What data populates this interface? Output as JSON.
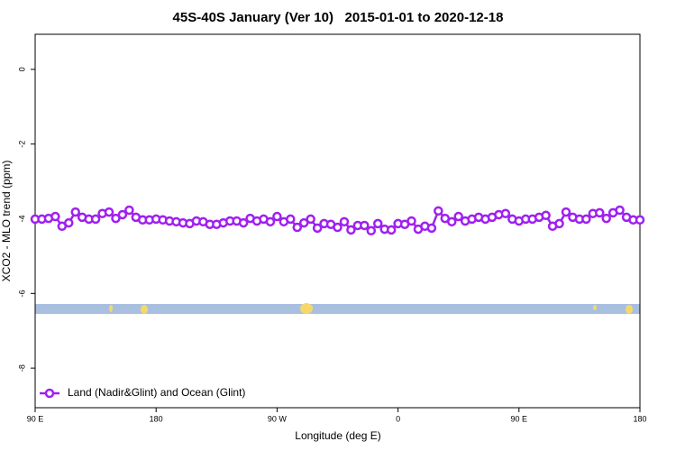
{
  "chart_data": {
    "type": "line",
    "title": "45S-40S January (Ver 10)   2015-01-01 to 2020-12-18",
    "x_label": "Longitude (deg E)",
    "y_label": "XCO2 - MLO trend (ppm)",
    "xlim": [
      90,
      540
    ],
    "xticks": [
      {
        "value": 90,
        "label": "90 E"
      },
      {
        "value": 180,
        "label": "180"
      },
      {
        "value": 270,
        "label": "90 W"
      },
      {
        "value": 360,
        "label": "0"
      },
      {
        "value": 450,
        "label": "90 E"
      },
      {
        "value": 540,
        "label": "180"
      }
    ],
    "ylim": [
      -9.06,
      0.94
    ],
    "yticks": [
      0,
      -2,
      -4,
      -6,
      -8
    ],
    "legend": "bottom-left",
    "x": [
      90,
      95,
      100,
      105,
      110,
      115,
      120,
      125,
      130,
      135,
      140,
      145,
      150,
      155,
      160,
      165,
      170,
      175,
      180,
      185,
      190,
      195,
      200,
      205,
      210,
      215,
      220,
      225,
      230,
      235,
      240,
      245,
      250,
      255,
      260,
      265,
      270,
      275,
      280,
      285,
      290,
      295,
      300,
      305,
      310,
      315,
      320,
      325,
      330,
      335,
      340,
      345,
      350,
      355,
      360,
      365,
      370,
      375,
      380,
      385,
      390,
      395,
      400,
      405,
      410,
      415,
      420,
      425,
      430,
      435,
      440,
      445,
      450,
      455,
      460,
      465,
      470,
      475,
      480,
      485,
      490,
      495,
      500,
      505,
      510,
      515,
      520,
      525,
      530,
      535,
      540
    ],
    "series": [
      {
        "name": "Land (Nadir&Glint) and Ocean (Glint)",
        "color": "#a020f0",
        "values": [
          -4.01,
          -4.01,
          -3.99,
          -3.94,
          -4.2,
          -4.11,
          -3.82,
          -3.96,
          -4.01,
          -4.01,
          -3.86,
          -3.82,
          -3.99,
          -3.89,
          -3.77,
          -3.96,
          -4.03,
          -4.03,
          -4.01,
          -4.03,
          -4.06,
          -4.08,
          -4.11,
          -4.13,
          -4.06,
          -4.08,
          -4.15,
          -4.15,
          -4.11,
          -4.06,
          -4.06,
          -4.11,
          -3.99,
          -4.06,
          -4.01,
          -4.08,
          -3.94,
          -4.08,
          -4.01,
          -4.23,
          -4.11,
          -4.01,
          -4.25,
          -4.13,
          -4.15,
          -4.23,
          -4.08,
          -4.3,
          -4.18,
          -4.18,
          -4.32,
          -4.13,
          -4.28,
          -4.3,
          -4.13,
          -4.15,
          -4.06,
          -4.28,
          -4.2,
          -4.25,
          -3.79,
          -3.99,
          -4.08,
          -3.94,
          -4.06,
          -4.01,
          -3.96,
          -4.01,
          -3.96,
          -3.89,
          -3.86,
          -4.01,
          -4.06,
          -4.01,
          -4.01,
          -3.96,
          -3.91,
          -4.2,
          -4.13,
          -3.82,
          -3.96,
          -4.01,
          -4.01,
          -3.86,
          -3.84,
          -3.99,
          -3.84,
          -3.77,
          -3.96,
          -4.03,
          -4.03
        ]
      }
    ]
  }
}
